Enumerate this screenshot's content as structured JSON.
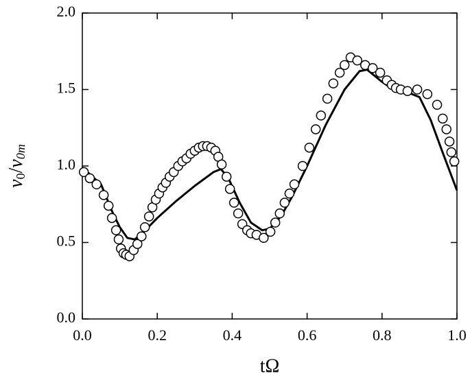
{
  "chart_data": {
    "type": "line",
    "xlabel": "tΩ",
    "ylabel": [
      "v",
      "0",
      "/",
      "v",
      "0m"
    ],
    "xlim": [
      0,
      1
    ],
    "ylim": [
      0,
      2
    ],
    "xticks": [
      {
        "value": 0,
        "label": "0.0"
      },
      0.2,
      0.4,
      0.6,
      0.8,
      {
        "value": 1,
        "label": "1.0"
      }
    ],
    "yticks": [
      {
        "value": 0,
        "label": "0.0"
      },
      0.5,
      {
        "value": 1,
        "label": "1.0"
      },
      1.5,
      {
        "value": 2,
        "label": "2.0"
      }
    ],
    "series": [
      {
        "type": "line",
        "color": "#000000",
        "x": [
          0,
          0.05,
          0.08,
          0.1,
          0.12,
          0.14,
          0.16,
          0.2,
          0.25,
          0.3,
          0.35,
          0.37,
          0.39,
          0.42,
          0.45,
          0.48,
          0.5,
          0.53,
          0.56,
          0.6,
          0.65,
          0.7,
          0.74,
          0.76,
          0.8,
          0.83,
          0.87,
          0.9,
          0.93,
          0.96,
          0.98,
          1.0
        ],
        "values": [
          0.99,
          0.88,
          0.7,
          0.6,
          0.53,
          0.52,
          0.56,
          0.66,
          0.77,
          0.87,
          0.96,
          0.98,
          0.92,
          0.76,
          0.63,
          0.58,
          0.59,
          0.67,
          0.8,
          1.0,
          1.27,
          1.5,
          1.62,
          1.63,
          1.55,
          1.5,
          1.48,
          1.45,
          1.3,
          1.1,
          0.97,
          0.84
        ]
      },
      {
        "type": "scatter",
        "color": "#000000",
        "x": [
          0.004,
          0.02,
          0.038,
          0.057,
          0.07,
          0.079,
          0.09,
          0.097,
          0.103,
          0.11,
          0.117,
          0.126,
          0.137,
          0.147,
          0.158,
          0.167,
          0.178,
          0.187,
          0.196,
          0.205,
          0.214,
          0.223,
          0.233,
          0.244,
          0.256,
          0.267,
          0.278,
          0.289,
          0.3,
          0.311,
          0.322,
          0.333,
          0.344,
          0.355,
          0.363,
          0.372,
          0.385,
          0.394,
          0.405,
          0.416,
          0.427,
          0.44,
          0.45,
          0.465,
          0.484,
          0.502,
          0.515,
          0.527,
          0.54,
          0.553,
          0.566,
          0.588,
          0.606,
          0.623,
          0.637,
          0.654,
          0.67,
          0.687,
          0.7,
          0.716,
          0.734,
          0.755,
          0.775,
          0.795,
          0.813,
          0.826,
          0.837,
          0.85,
          0.868,
          0.894,
          0.921,
          0.947,
          0.962,
          0.972,
          0.98,
          0.985,
          0.993
        ],
        "values": [
          0.96,
          0.92,
          0.88,
          0.81,
          0.74,
          0.66,
          0.58,
          0.52,
          0.46,
          0.43,
          0.42,
          0.41,
          0.45,
          0.49,
          0.54,
          0.6,
          0.67,
          0.73,
          0.78,
          0.82,
          0.86,
          0.89,
          0.93,
          0.96,
          1.0,
          1.03,
          1.05,
          1.08,
          1.1,
          1.12,
          1.13,
          1.13,
          1.12,
          1.1,
          1.06,
          1.01,
          0.93,
          0.85,
          0.76,
          0.69,
          0.62,
          0.58,
          0.56,
          0.55,
          0.53,
          0.57,
          0.63,
          0.69,
          0.76,
          0.82,
          0.88,
          1.0,
          1.12,
          1.24,
          1.33,
          1.44,
          1.54,
          1.61,
          1.66,
          1.71,
          1.69,
          1.66,
          1.64,
          1.61,
          1.56,
          1.53,
          1.51,
          1.5,
          1.49,
          1.5,
          1.47,
          1.4,
          1.31,
          1.24,
          1.16,
          1.09,
          1.03
        ]
      }
    ]
  }
}
